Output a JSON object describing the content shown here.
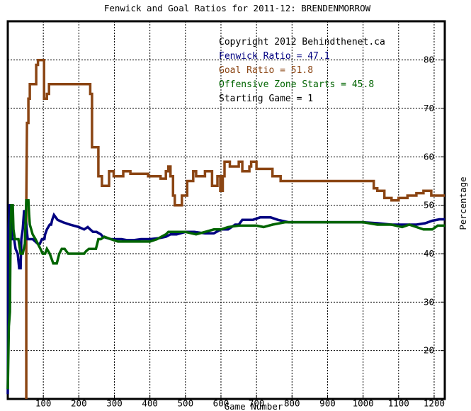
{
  "chart_data": {
    "type": "line",
    "title": "Fenwick and Goal Ratios for 2011-12: BRENDENMORROW",
    "xlabel": "Game Number",
    "ylabel": "Percentage",
    "xlim": [
      0,
      1230
    ],
    "ylim": [
      10,
      88
    ],
    "x_ticks": [
      100,
      200,
      300,
      400,
      500,
      600,
      700,
      800,
      900,
      1000,
      1100,
      1200
    ],
    "y_ticks": [
      20,
      30,
      40,
      50,
      60,
      70,
      80
    ],
    "grid": true,
    "legend": {
      "placement": "top-right",
      "copyright": "Copyright 2012 Behindthenet.ca",
      "starting_game": "Starting Game = 1",
      "entries": [
        {
          "series": 0,
          "text": "Fenwick Ratio = 47.1"
        },
        {
          "series": 1,
          "text": "Goal Ratio = 51.8"
        },
        {
          "series": 2,
          "text": "Offensive Zone Starts = 45.8"
        }
      ]
    },
    "series": [
      {
        "name": "Fenwick Ratio",
        "color": "#000080",
        "points": [
          [
            0,
            11
          ],
          [
            2,
            45
          ],
          [
            5,
            50
          ],
          [
            10,
            50
          ],
          [
            12,
            43
          ],
          [
            18,
            43
          ],
          [
            22,
            41
          ],
          [
            28,
            40
          ],
          [
            32,
            37
          ],
          [
            36,
            37
          ],
          [
            38,
            43
          ],
          [
            42,
            45
          ],
          [
            46,
            49
          ],
          [
            52,
            46
          ],
          [
            56,
            43
          ],
          [
            70,
            43
          ],
          [
            85,
            42
          ],
          [
            90,
            42
          ],
          [
            96,
            43
          ],
          [
            103,
            43
          ],
          [
            105,
            44
          ],
          [
            110,
            45
          ],
          [
            118,
            46
          ],
          [
            122,
            46
          ],
          [
            125,
            47
          ],
          [
            130,
            48
          ],
          [
            140,
            47
          ],
          [
            155,
            46.5
          ],
          [
            175,
            46
          ],
          [
            200,
            45.5
          ],
          [
            215,
            45
          ],
          [
            225,
            45.5
          ],
          [
            232,
            45
          ],
          [
            240,
            44.5
          ],
          [
            250,
            44.5
          ],
          [
            262,
            44
          ],
          [
            268,
            43.5
          ],
          [
            290,
            43
          ],
          [
            305,
            43
          ],
          [
            320,
            43
          ],
          [
            335,
            42.8
          ],
          [
            355,
            42.8
          ],
          [
            375,
            43
          ],
          [
            400,
            43
          ],
          [
            425,
            43.2
          ],
          [
            445,
            43.5
          ],
          [
            458,
            44
          ],
          [
            475,
            44
          ],
          [
            500,
            44.5
          ],
          [
            525,
            44.5
          ],
          [
            555,
            44.2
          ],
          [
            580,
            44.2
          ],
          [
            600,
            45
          ],
          [
            620,
            45
          ],
          [
            640,
            46
          ],
          [
            650,
            46
          ],
          [
            660,
            47
          ],
          [
            690,
            47
          ],
          [
            710,
            47.5
          ],
          [
            740,
            47.5
          ],
          [
            760,
            47
          ],
          [
            790,
            46.5
          ],
          [
            820,
            46.5
          ],
          [
            880,
            46.5
          ],
          [
            940,
            46.5
          ],
          [
            1000,
            46.5
          ],
          [
            1040,
            46.3
          ],
          [
            1080,
            46
          ],
          [
            1110,
            46
          ],
          [
            1150,
            46
          ],
          [
            1175,
            46.3
          ],
          [
            1195,
            46.8
          ],
          [
            1215,
            47.1
          ],
          [
            1230,
            47.1
          ]
        ]
      },
      {
        "name": "Goal Ratio",
        "color": "#8b4513",
        "points": [
          [
            52,
            10
          ],
          [
            52,
            50
          ],
          [
            54,
            67
          ],
          [
            58,
            67
          ],
          [
            58,
            72
          ],
          [
            62,
            72
          ],
          [
            62,
            75
          ],
          [
            68,
            75
          ],
          [
            70,
            75
          ],
          [
            80,
            75
          ],
          [
            80,
            79
          ],
          [
            85,
            79
          ],
          [
            85,
            80
          ],
          [
            102,
            80
          ],
          [
            102,
            72
          ],
          [
            110,
            72
          ],
          [
            110,
            73
          ],
          [
            116,
            73
          ],
          [
            116,
            75
          ],
          [
            185,
            75
          ],
          [
            185,
            75
          ],
          [
            232,
            75
          ],
          [
            232,
            73
          ],
          [
            237,
            73
          ],
          [
            237,
            62
          ],
          [
            255,
            62
          ],
          [
            255,
            56
          ],
          [
            265,
            56
          ],
          [
            265,
            54
          ],
          [
            285,
            54
          ],
          [
            285,
            57
          ],
          [
            298,
            57
          ],
          [
            298,
            56
          ],
          [
            325,
            56
          ],
          [
            325,
            57
          ],
          [
            345,
            57
          ],
          [
            345,
            56.5
          ],
          [
            395,
            56.5
          ],
          [
            395,
            56
          ],
          [
            430,
            56
          ],
          [
            430,
            55.5
          ],
          [
            445,
            55.5
          ],
          [
            445,
            57
          ],
          [
            452,
            57
          ],
          [
            452,
            58
          ],
          [
            458,
            58
          ],
          [
            458,
            56
          ],
          [
            465,
            56
          ],
          [
            465,
            52
          ],
          [
            470,
            52
          ],
          [
            470,
            50
          ],
          [
            490,
            50
          ],
          [
            490,
            52
          ],
          [
            505,
            52
          ],
          [
            505,
            55
          ],
          [
            522,
            55
          ],
          [
            522,
            57
          ],
          [
            530,
            57
          ],
          [
            530,
            56
          ],
          [
            555,
            56
          ],
          [
            555,
            57
          ],
          [
            575,
            57
          ],
          [
            575,
            54
          ],
          [
            590,
            54
          ],
          [
            590,
            56
          ],
          [
            598,
            56
          ],
          [
            598,
            53
          ],
          [
            605,
            53
          ],
          [
            605,
            56
          ],
          [
            610,
            56
          ],
          [
            610,
            59
          ],
          [
            625,
            59
          ],
          [
            625,
            58
          ],
          [
            650,
            58
          ],
          [
            650,
            59
          ],
          [
            660,
            59
          ],
          [
            660,
            57
          ],
          [
            680,
            57
          ],
          [
            680,
            58
          ],
          [
            685,
            58
          ],
          [
            685,
            59
          ],
          [
            700,
            59
          ],
          [
            700,
            57.5
          ],
          [
            745,
            57.5
          ],
          [
            745,
            56
          ],
          [
            768,
            56
          ],
          [
            768,
            55
          ],
          [
            840,
            55
          ],
          [
            840,
            55
          ],
          [
            970,
            55
          ],
          [
            970,
            55
          ],
          [
            1030,
            55
          ],
          [
            1030,
            53.5
          ],
          [
            1040,
            53.5
          ],
          [
            1040,
            53
          ],
          [
            1060,
            53
          ],
          [
            1060,
            51.5
          ],
          [
            1080,
            51.5
          ],
          [
            1080,
            51
          ],
          [
            1100,
            51
          ],
          [
            1100,
            51.5
          ],
          [
            1125,
            51.5
          ],
          [
            1125,
            52
          ],
          [
            1150,
            52
          ],
          [
            1150,
            52.5
          ],
          [
            1170,
            52.5
          ],
          [
            1170,
            53
          ],
          [
            1192,
            53
          ],
          [
            1192,
            52
          ],
          [
            1230,
            52
          ]
        ]
      },
      {
        "name": "Offensive Zone Starts",
        "color": "#006400",
        "points": [
          [
            0,
            12
          ],
          [
            3,
            25
          ],
          [
            6,
            28
          ],
          [
            8,
            46
          ],
          [
            10,
            50
          ],
          [
            14,
            50
          ],
          [
            16,
            45
          ],
          [
            20,
            43
          ],
          [
            30,
            43
          ],
          [
            36,
            40
          ],
          [
            42,
            40
          ],
          [
            48,
            42
          ],
          [
            52,
            51
          ],
          [
            58,
            51
          ],
          [
            60,
            48
          ],
          [
            62,
            46
          ],
          [
            70,
            44
          ],
          [
            78,
            43
          ],
          [
            85,
            42
          ],
          [
            92,
            41
          ],
          [
            98,
            40
          ],
          [
            105,
            40
          ],
          [
            110,
            41
          ],
          [
            118,
            40
          ],
          [
            123,
            39
          ],
          [
            128,
            38
          ],
          [
            132,
            38
          ],
          [
            138,
            38
          ],
          [
            145,
            40
          ],
          [
            152,
            41
          ],
          [
            160,
            41
          ],
          [
            170,
            40
          ],
          [
            200,
            40
          ],
          [
            215,
            40
          ],
          [
            220,
            40.5
          ],
          [
            228,
            41
          ],
          [
            238,
            41
          ],
          [
            248,
            41
          ],
          [
            255,
            43
          ],
          [
            262,
            43
          ],
          [
            272,
            43.5
          ],
          [
            290,
            43
          ],
          [
            310,
            42.5
          ],
          [
            350,
            42.5
          ],
          [
            400,
            42.5
          ],
          [
            420,
            43
          ],
          [
            432,
            43.5
          ],
          [
            445,
            44
          ],
          [
            452,
            44.5
          ],
          [
            462,
            44.5
          ],
          [
            480,
            44.5
          ],
          [
            500,
            44.5
          ],
          [
            530,
            44
          ],
          [
            555,
            44.5
          ],
          [
            580,
            45
          ],
          [
            600,
            45
          ],
          [
            620,
            45.5
          ],
          [
            650,
            45.8
          ],
          [
            700,
            45.8
          ],
          [
            720,
            45.5
          ],
          [
            745,
            46
          ],
          [
            780,
            46.5
          ],
          [
            820,
            46.5
          ],
          [
            900,
            46.5
          ],
          [
            960,
            46.5
          ],
          [
            1000,
            46.5
          ],
          [
            1040,
            46
          ],
          [
            1080,
            46
          ],
          [
            1110,
            45.5
          ],
          [
            1130,
            46
          ],
          [
            1150,
            45.5
          ],
          [
            1170,
            45
          ],
          [
            1195,
            45
          ],
          [
            1210,
            45.8
          ],
          [
            1230,
            45.8
          ]
        ]
      }
    ]
  }
}
